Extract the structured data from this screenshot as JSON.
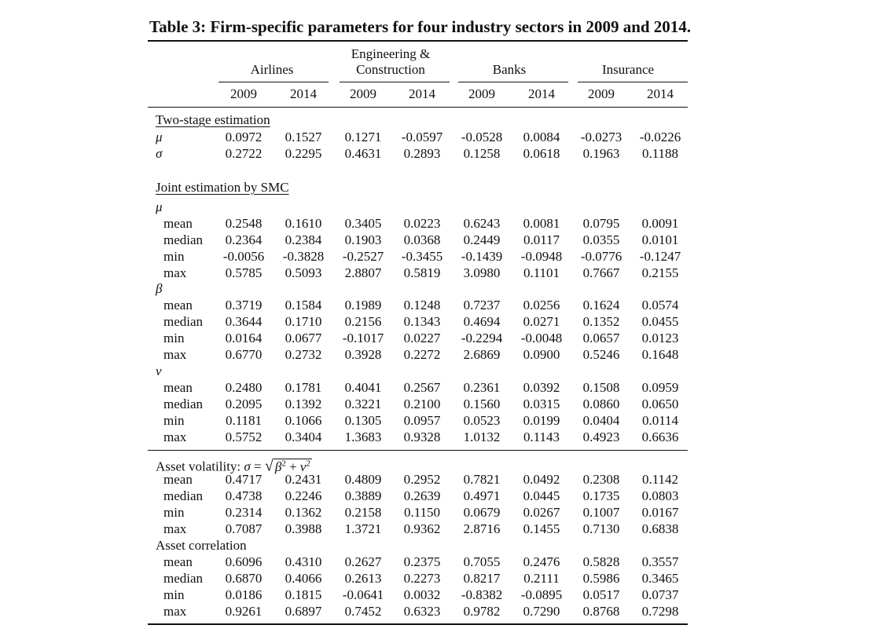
{
  "caption": "Table 3: Firm-specific parameters for four industry sectors in 2009 and 2014.",
  "sectors": [
    "Airlines",
    "Engineering &\nConstruction",
    "Banks",
    "Insurance"
  ],
  "years": [
    "2009",
    "2014",
    "2009",
    "2014",
    "2009",
    "2014",
    "2009",
    "2014"
  ],
  "sections": [
    {
      "title": "Two-stage estimation",
      "underline": true,
      "rows": [
        {
          "label": "μ",
          "symbol": true,
          "values": [
            "0.0972",
            "0.1527",
            "0.1271",
            "-0.0597",
            "-0.0528",
            "0.0084",
            "-0.0273",
            "-0.0226"
          ]
        },
        {
          "label": "σ",
          "symbol": true,
          "values": [
            "0.2722",
            "0.2295",
            "0.4631",
            "0.2893",
            "0.1258",
            "0.0618",
            "0.1963",
            "0.1188"
          ]
        }
      ]
    },
    {
      "title": "Joint estimation by SMC",
      "underline": true,
      "groups": [
        {
          "symbol": "μ",
          "rows": [
            {
              "label": "mean",
              "values": [
                "0.2548",
                "0.1610",
                "0.3405",
                "0.0223",
                "0.6243",
                "0.0081",
                "0.0795",
                "0.0091"
              ]
            },
            {
              "label": "median",
              "values": [
                "0.2364",
                "0.2384",
                "0.1903",
                "0.0368",
                "0.2449",
                "0.0117",
                "0.0355",
                "0.0101"
              ]
            },
            {
              "label": "min",
              "values": [
                "-0.0056",
                "-0.3828",
                "-0.2527",
                "-0.3455",
                "-0.1439",
                "-0.0948",
                "-0.0776",
                "-0.1247"
              ]
            },
            {
              "label": "max",
              "values": [
                "0.5785",
                "0.5093",
                "2.8807",
                "0.5819",
                "3.0980",
                "0.1101",
                "0.7667",
                "0.2155"
              ]
            }
          ]
        },
        {
          "symbol": "β",
          "rows": [
            {
              "label": "mean",
              "values": [
                "0.3719",
                "0.1584",
                "0.1989",
                "0.1248",
                "0.7237",
                "0.0256",
                "0.1624",
                "0.0574"
              ]
            },
            {
              "label": "median",
              "values": [
                "0.3644",
                "0.1710",
                "0.2156",
                "0.1343",
                "0.4694",
                "0.0271",
                "0.1352",
                "0.0455"
              ]
            },
            {
              "label": "min",
              "values": [
                "0.0164",
                "0.0677",
                "-0.1017",
                "0.0227",
                "-0.2294",
                "-0.0048",
                "0.0657",
                "0.0123"
              ]
            },
            {
              "label": "max",
              "values": [
                "0.6770",
                "0.2732",
                "0.3928",
                "0.2272",
                "2.6869",
                "0.0900",
                "0.5246",
                "0.1648"
              ]
            }
          ]
        },
        {
          "symbol": "ν",
          "rows": [
            {
              "label": "mean",
              "values": [
                "0.2480",
                "0.1781",
                "0.4041",
                "0.2567",
                "0.2361",
                "0.0392",
                "0.1508",
                "0.0959"
              ]
            },
            {
              "label": "median",
              "values": [
                "0.2095",
                "0.1392",
                "0.3221",
                "0.2100",
                "0.1560",
                "0.0315",
                "0.0860",
                "0.0650"
              ]
            },
            {
              "label": "min",
              "values": [
                "0.1181",
                "0.1066",
                "0.1305",
                "0.0957",
                "0.0523",
                "0.0199",
                "0.0404",
                "0.0114"
              ]
            },
            {
              "label": "max",
              "values": [
                "0.5752",
                "0.3404",
                "1.3683",
                "0.9328",
                "1.0132",
                "0.1143",
                "0.4923",
                "0.6636"
              ]
            }
          ]
        }
      ]
    },
    {
      "title": "Asset volatility: σ = √(β² + ν²)",
      "rows": [
        {
          "label": "mean",
          "values": [
            "0.4717",
            "0.2431",
            "0.4809",
            "0.2952",
            "0.7821",
            "0.0492",
            "0.2308",
            "0.1142"
          ]
        },
        {
          "label": "median",
          "values": [
            "0.4738",
            "0.2246",
            "0.3889",
            "0.2639",
            "0.4971",
            "0.0445",
            "0.1735",
            "0.0803"
          ]
        },
        {
          "label": "min",
          "values": [
            "0.2314",
            "0.1362",
            "0.2158",
            "0.1150",
            "0.0679",
            "0.0267",
            "0.1007",
            "0.0167"
          ]
        },
        {
          "label": "max",
          "values": [
            "0.7087",
            "0.3988",
            "1.3721",
            "0.9362",
            "2.8716",
            "0.1455",
            "0.7130",
            "0.6838"
          ]
        }
      ]
    },
    {
      "title": "Asset correlation",
      "rows": [
        {
          "label": "mean",
          "values": [
            "0.6096",
            "0.4310",
            "0.2627",
            "0.2375",
            "0.7055",
            "0.2476",
            "0.5828",
            "0.3557"
          ]
        },
        {
          "label": "median",
          "values": [
            "0.6870",
            "0.4066",
            "0.2613",
            "0.2273",
            "0.8217",
            "0.2111",
            "0.5986",
            "0.3465"
          ]
        },
        {
          "label": "min",
          "values": [
            "0.0186",
            "0.1815",
            "-0.0641",
            "0.0032",
            "-0.8382",
            "-0.0895",
            "0.0517",
            "0.0737"
          ]
        },
        {
          "label": "max",
          "values": [
            "0.9261",
            "0.6897",
            "0.7452",
            "0.6323",
            "0.9782",
            "0.7290",
            "0.8768",
            "0.7298"
          ]
        }
      ]
    }
  ]
}
